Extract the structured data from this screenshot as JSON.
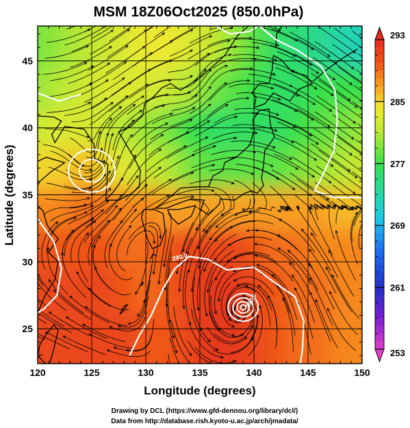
{
  "chart_data": {
    "type": "heatmap",
    "title": "MSM 18Z06Oct2025 (850.0hPa)",
    "xlabel": "Longitude (degrees)",
    "ylabel": "Latitude  (degrees)",
    "xlim": [
      120,
      150
    ],
    "ylim": [
      22.4,
      47.6
    ],
    "x_ticks": [
      "120",
      "125",
      "130",
      "135",
      "140",
      "145",
      "150"
    ],
    "y_ticks": [
      "25",
      "30",
      "35",
      "40",
      "45"
    ],
    "grid": true,
    "colorbar": {
      "ticks": [
        "293",
        "285",
        "277",
        "269",
        "261",
        "253"
      ],
      "min": 253,
      "max": 293,
      "extend": "both"
    },
    "contour_labels": [
      "290.0",
      "290.0"
    ],
    "cyclone_center": {
      "lon": 139,
      "lat": 26.6
    },
    "low_center": {
      "lon": 125,
      "lat": 36.8
    },
    "field_samples": [
      {
        "lat": 46,
        "values": [
          279,
          280,
          281,
          282,
          283,
          284,
          284,
          283,
          282,
          280,
          278,
          276,
          275,
          274,
          273,
          272
        ]
      },
      {
        "lat": 43,
        "values": [
          280,
          281,
          282,
          283,
          283,
          283,
          282,
          281,
          279,
          278,
          277,
          276,
          276,
          277,
          277,
          277
        ]
      },
      {
        "lat": 40,
        "values": [
          282,
          283,
          283,
          282,
          281,
          280,
          279,
          277,
          276,
          276,
          276,
          276,
          277,
          278,
          279,
          280
        ]
      },
      {
        "lat": 37,
        "values": [
          285,
          285,
          286,
          285,
          283,
          282,
          281,
          279,
          278,
          278,
          278,
          278,
          279,
          280,
          281,
          282
        ]
      },
      {
        "lat": 34,
        "values": [
          288,
          288,
          289,
          289,
          288,
          288,
          287,
          287,
          287,
          287,
          287,
          287,
          287,
          287,
          286,
          286
        ]
      },
      {
        "lat": 31,
        "values": [
          290,
          290,
          290,
          290,
          289,
          289,
          290,
          291,
          291,
          291,
          290,
          289,
          289,
          288,
          288,
          288
        ]
      },
      {
        "lat": 28,
        "values": [
          291,
          291,
          291,
          291,
          290,
          289,
          290,
          291,
          292,
          292,
          291,
          290,
          289,
          289,
          288,
          288
        ]
      },
      {
        "lat": 25,
        "values": [
          291,
          291,
          291,
          291,
          291,
          290,
          290,
          291,
          292,
          292,
          291,
          290,
          289,
          289,
          288,
          288
        ]
      }
    ]
  },
  "credits": {
    "line1": "Drawing by DCL (https://www.gfd-dennou.org/library/dcl/)",
    "line2": "Data from http://database.rish.kyoto-u.ac.jp/arch/jmadata/"
  }
}
